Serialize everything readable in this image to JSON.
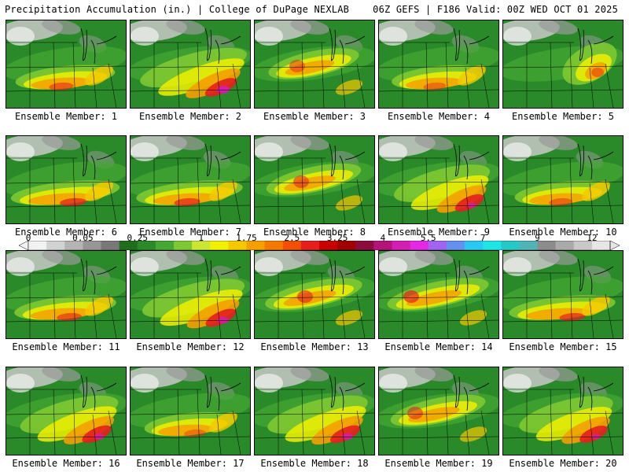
{
  "header": {
    "left": "Precipitation Accumulation (in.) | College of DuPage NEXLAB",
    "right": "06Z GEFS | F186 Valid: 00Z WED OCT 01 2025"
  },
  "panels": [
    {
      "label": "Ensemble Member: 1",
      "pattern": "south-belt",
      "intensity": 0.65
    },
    {
      "label": "Ensemble Member: 2",
      "pattern": "se-heavy",
      "intensity": 1.0
    },
    {
      "label": "Ensemble Member: 3",
      "pattern": "central",
      "intensity": 0.6
    },
    {
      "label": "Ensemble Member: 4",
      "pattern": "south-belt",
      "intensity": 0.5
    },
    {
      "label": "Ensemble Member: 5",
      "pattern": "east",
      "intensity": 0.6
    },
    {
      "label": "Ensemble Member: 6",
      "pattern": "south-belt",
      "intensity": 0.85
    },
    {
      "label": "Ensemble Member: 7",
      "pattern": "south-belt",
      "intensity": 0.8
    },
    {
      "label": "Ensemble Member: 8",
      "pattern": "central",
      "intensity": 0.7
    },
    {
      "label": "Ensemble Member: 9",
      "pattern": "se-heavy",
      "intensity": 0.75
    },
    {
      "label": "Ensemble Member: 10",
      "pattern": "south-belt",
      "intensity": 0.55
    },
    {
      "label": "Ensemble Member: 11",
      "pattern": "south-belt",
      "intensity": 0.7
    },
    {
      "label": "Ensemble Member: 12",
      "pattern": "se-heavy",
      "intensity": 0.9
    },
    {
      "label": "Ensemble Member: 13",
      "pattern": "central",
      "intensity": 0.75
    },
    {
      "label": "Ensemble Member: 14",
      "pattern": "central",
      "intensity": 0.85
    },
    {
      "label": "Ensemble Member: 15",
      "pattern": "south-belt",
      "intensity": 0.8
    },
    {
      "label": "Ensemble Member: 16",
      "pattern": "se-heavy",
      "intensity": 0.8
    },
    {
      "label": "Ensemble Member: 17",
      "pattern": "south-belt",
      "intensity": 0.45
    },
    {
      "label": "Ensemble Member: 18",
      "pattern": "se-heavy",
      "intensity": 0.85
    },
    {
      "label": "Ensemble Member: 19",
      "pattern": "central",
      "intensity": 0.7
    },
    {
      "label": "Ensemble Member: 20",
      "pattern": "se-heavy",
      "intensity": 0.7
    }
  ],
  "colorbar": {
    "colors": [
      "#f2f2f2",
      "#d2d2d2",
      "#b4b4b4",
      "#969696",
      "#787878",
      "#1e6e1e",
      "#2a8a2a",
      "#46a832",
      "#7ec832",
      "#c8e632",
      "#f0f000",
      "#f5c800",
      "#f5a000",
      "#f57800",
      "#f05000",
      "#e61e1e",
      "#c80000",
      "#a00000",
      "#8c0a3c",
      "#b4147a",
      "#d21eb4",
      "#e628e6",
      "#a064f0",
      "#6490f0",
      "#28c8f0",
      "#1ee6e6",
      "#28c8c8",
      "#50b4b4",
      "#8c8c8c",
      "#aaaaaa",
      "#c8c8c8",
      "#e6e6e6"
    ],
    "ticks": [
      {
        "label": "0",
        "index": 0
      },
      {
        "label": "0.05",
        "index": 3
      },
      {
        "label": "0.25",
        "index": 6
      },
      {
        "label": "1",
        "index": 9.5
      },
      {
        "label": "1.75",
        "index": 12
      },
      {
        "label": "2.5",
        "index": 14.5
      },
      {
        "label": "3.25",
        "index": 17
      },
      {
        "label": "4",
        "index": 19.5
      },
      {
        "label": "5.5",
        "index": 22
      },
      {
        "label": "7",
        "index": 25
      },
      {
        "label": "9",
        "index": 28
      },
      {
        "label": "12",
        "index": 31
      }
    ]
  }
}
